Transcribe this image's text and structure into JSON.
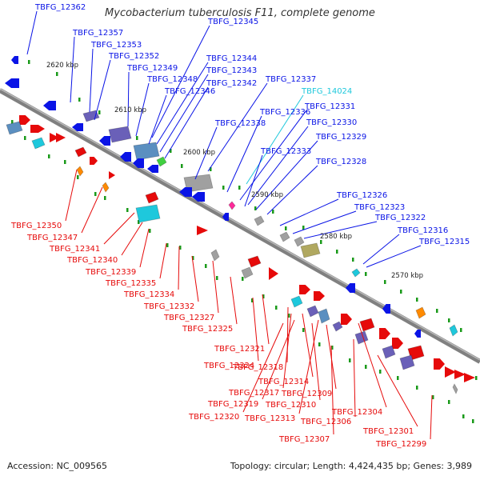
{
  "title": "Mycobacterium tuberculosis F11, complete genome",
  "footer": {
    "accession": "Accession: NC_009565",
    "topology": "Topology: circular; Length: 4,424,435 bp; Genes: 3,989"
  },
  "scale_labels": [
    "2620 kbp",
    "2610 kbp",
    "2600 kbp",
    "2590 kbp",
    "2580 kbp",
    "2570 kbp"
  ],
  "upper_labels": [
    {
      "text": "TBFG_12362",
      "color": "blue"
    },
    {
      "text": "TBFG_12357",
      "color": "blue"
    },
    {
      "text": "TBFG_12353",
      "color": "blue"
    },
    {
      "text": "TBFG_12352",
      "color": "blue"
    },
    {
      "text": "TBFG_12349",
      "color": "blue"
    },
    {
      "text": "TBFG_12348",
      "color": "blue"
    },
    {
      "text": "TBFG_12346",
      "color": "blue"
    },
    {
      "text": "TBFG_12345",
      "color": "blue"
    },
    {
      "text": "TBFG_12344",
      "color": "blue"
    },
    {
      "text": "TBFG_12343",
      "color": "blue"
    },
    {
      "text": "TBFG_12342",
      "color": "blue"
    },
    {
      "text": "TBFG_12337",
      "color": "blue"
    },
    {
      "text": "TBFG_14024",
      "color": "cyan"
    },
    {
      "text": "TBFG_12338",
      "color": "blue"
    },
    {
      "text": "TBFG_12336",
      "color": "blue"
    },
    {
      "text": "TBFG_12331",
      "color": "blue"
    },
    {
      "text": "TBFG_12330",
      "color": "blue"
    },
    {
      "text": "TBFG_12329",
      "color": "blue"
    },
    {
      "text": "TBFG_12333",
      "color": "blue"
    },
    {
      "text": "TBFG_12328",
      "color": "blue"
    },
    {
      "text": "TBFG_12326",
      "color": "blue"
    },
    {
      "text": "TBFG_12323",
      "color": "blue"
    },
    {
      "text": "TBFG_12322",
      "color": "blue"
    },
    {
      "text": "TBFG_12316",
      "color": "blue"
    },
    {
      "text": "TBFG_12315",
      "color": "blue"
    }
  ],
  "lower_labels": [
    {
      "text": "TBFG_12350",
      "color": "red"
    },
    {
      "text": "TBFG_12347",
      "color": "red"
    },
    {
      "text": "TBFG_12341",
      "color": "red"
    },
    {
      "text": "TBFG_12340",
      "color": "red"
    },
    {
      "text": "TBFG_12339",
      "color": "red"
    },
    {
      "text": "TBFG_12335",
      "color": "red"
    },
    {
      "text": "TBFG_12334",
      "color": "red"
    },
    {
      "text": "TBFG_12332",
      "color": "red"
    },
    {
      "text": "TBFG_12327",
      "color": "red"
    },
    {
      "text": "TBFG_12325",
      "color": "red"
    },
    {
      "text": "TBFG_12321",
      "color": "red"
    },
    {
      "text": "TBFG_12324",
      "color": "red"
    },
    {
      "text": "TBFG_12318",
      "color": "red"
    },
    {
      "text": "TBFG_12314",
      "color": "red"
    },
    {
      "text": "TBFG_12317",
      "color": "red"
    },
    {
      "text": "TBFG_12309",
      "color": "red"
    },
    {
      "text": "TBFG_12319",
      "color": "red"
    },
    {
      "text": "TBFG_12310",
      "color": "red"
    },
    {
      "text": "TBFG_12320",
      "color": "red"
    },
    {
      "text": "TBFG_12313",
      "color": "red"
    },
    {
      "text": "TBFG_12306",
      "color": "red"
    },
    {
      "text": "TBFG_12304",
      "color": "red"
    },
    {
      "text": "TBFG_12307",
      "color": "red"
    },
    {
      "text": "TBFG_12301",
      "color": "red"
    },
    {
      "text": "TBFG_12299",
      "color": "red"
    }
  ],
  "colors": {
    "blue": "#0a14e6",
    "red": "#e60a0a",
    "cyan": "#1ec8dc",
    "green": "#1a9a1a",
    "backbone": "#808080",
    "orange": "#ff8a00",
    "steel": "#5b8fc0",
    "purple": "#6a60b8",
    "olive": "#b0a860",
    "gray": "#a0a0a0",
    "magenta": "#ff2a9a",
    "lime": "#40d040"
  }
}
